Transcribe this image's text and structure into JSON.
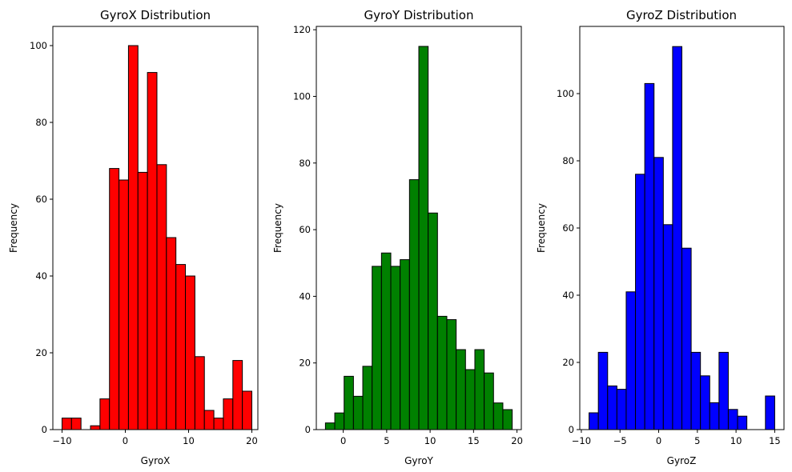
{
  "chart_data": [
    {
      "type": "bar",
      "title": "GyroX Distribution",
      "xlabel": "GyroX",
      "ylabel": "Frequency",
      "color": "#ff0000",
      "edgecolor": "#000000",
      "xlim": [
        -11.45,
        20.95
      ],
      "ylim": [
        0,
        105
      ],
      "xticks": [
        -10,
        0,
        10,
        20
      ],
      "yticks": [
        0,
        20,
        40,
        60,
        80,
        100
      ],
      "bins": {
        "start": -10,
        "width": 1.5,
        "counts": [
          3,
          3,
          0,
          1,
          8,
          68,
          65,
          100,
          67,
          93,
          69,
          50,
          43,
          40,
          19,
          5,
          3,
          8,
          18,
          10
        ]
      }
    },
    {
      "type": "bar",
      "title": "GyroY Distribution",
      "xlabel": "GyroY",
      "ylabel": "Frequency",
      "color": "#008000",
      "edgecolor": "#000000",
      "xlim": [
        -3.1,
        20.5
      ],
      "ylim": [
        0,
        121
      ],
      "xticks": [
        0,
        5,
        10,
        15,
        20
      ],
      "yticks": [
        0,
        20,
        40,
        60,
        80,
        100,
        120
      ],
      "bins": {
        "start": -2.05,
        "width": 1.075,
        "counts": [
          2,
          5,
          16,
          10,
          19,
          49,
          53,
          49,
          51,
          75,
          115,
          65,
          34,
          33,
          24,
          18,
          24,
          17,
          8,
          6
        ]
      }
    },
    {
      "type": "bar",
      "title": "GyroZ Distribution",
      "xlabel": "GyroZ",
      "ylabel": "Frequency",
      "color": "#0000ff",
      "edgecolor": "#000000",
      "xlim": [
        -10.2,
        16.2
      ],
      "ylim": [
        0,
        120
      ],
      "xticks": [
        -10,
        -5,
        0,
        5,
        10,
        15
      ],
      "yticks": [
        0,
        20,
        40,
        60,
        80,
        100
      ],
      "bins": {
        "start": -9,
        "width": 1.2,
        "counts": [
          5,
          23,
          13,
          12,
          41,
          76,
          103,
          81,
          61,
          114,
          54,
          23,
          16,
          8,
          23,
          6,
          4,
          0,
          0,
          10
        ]
      }
    }
  ]
}
